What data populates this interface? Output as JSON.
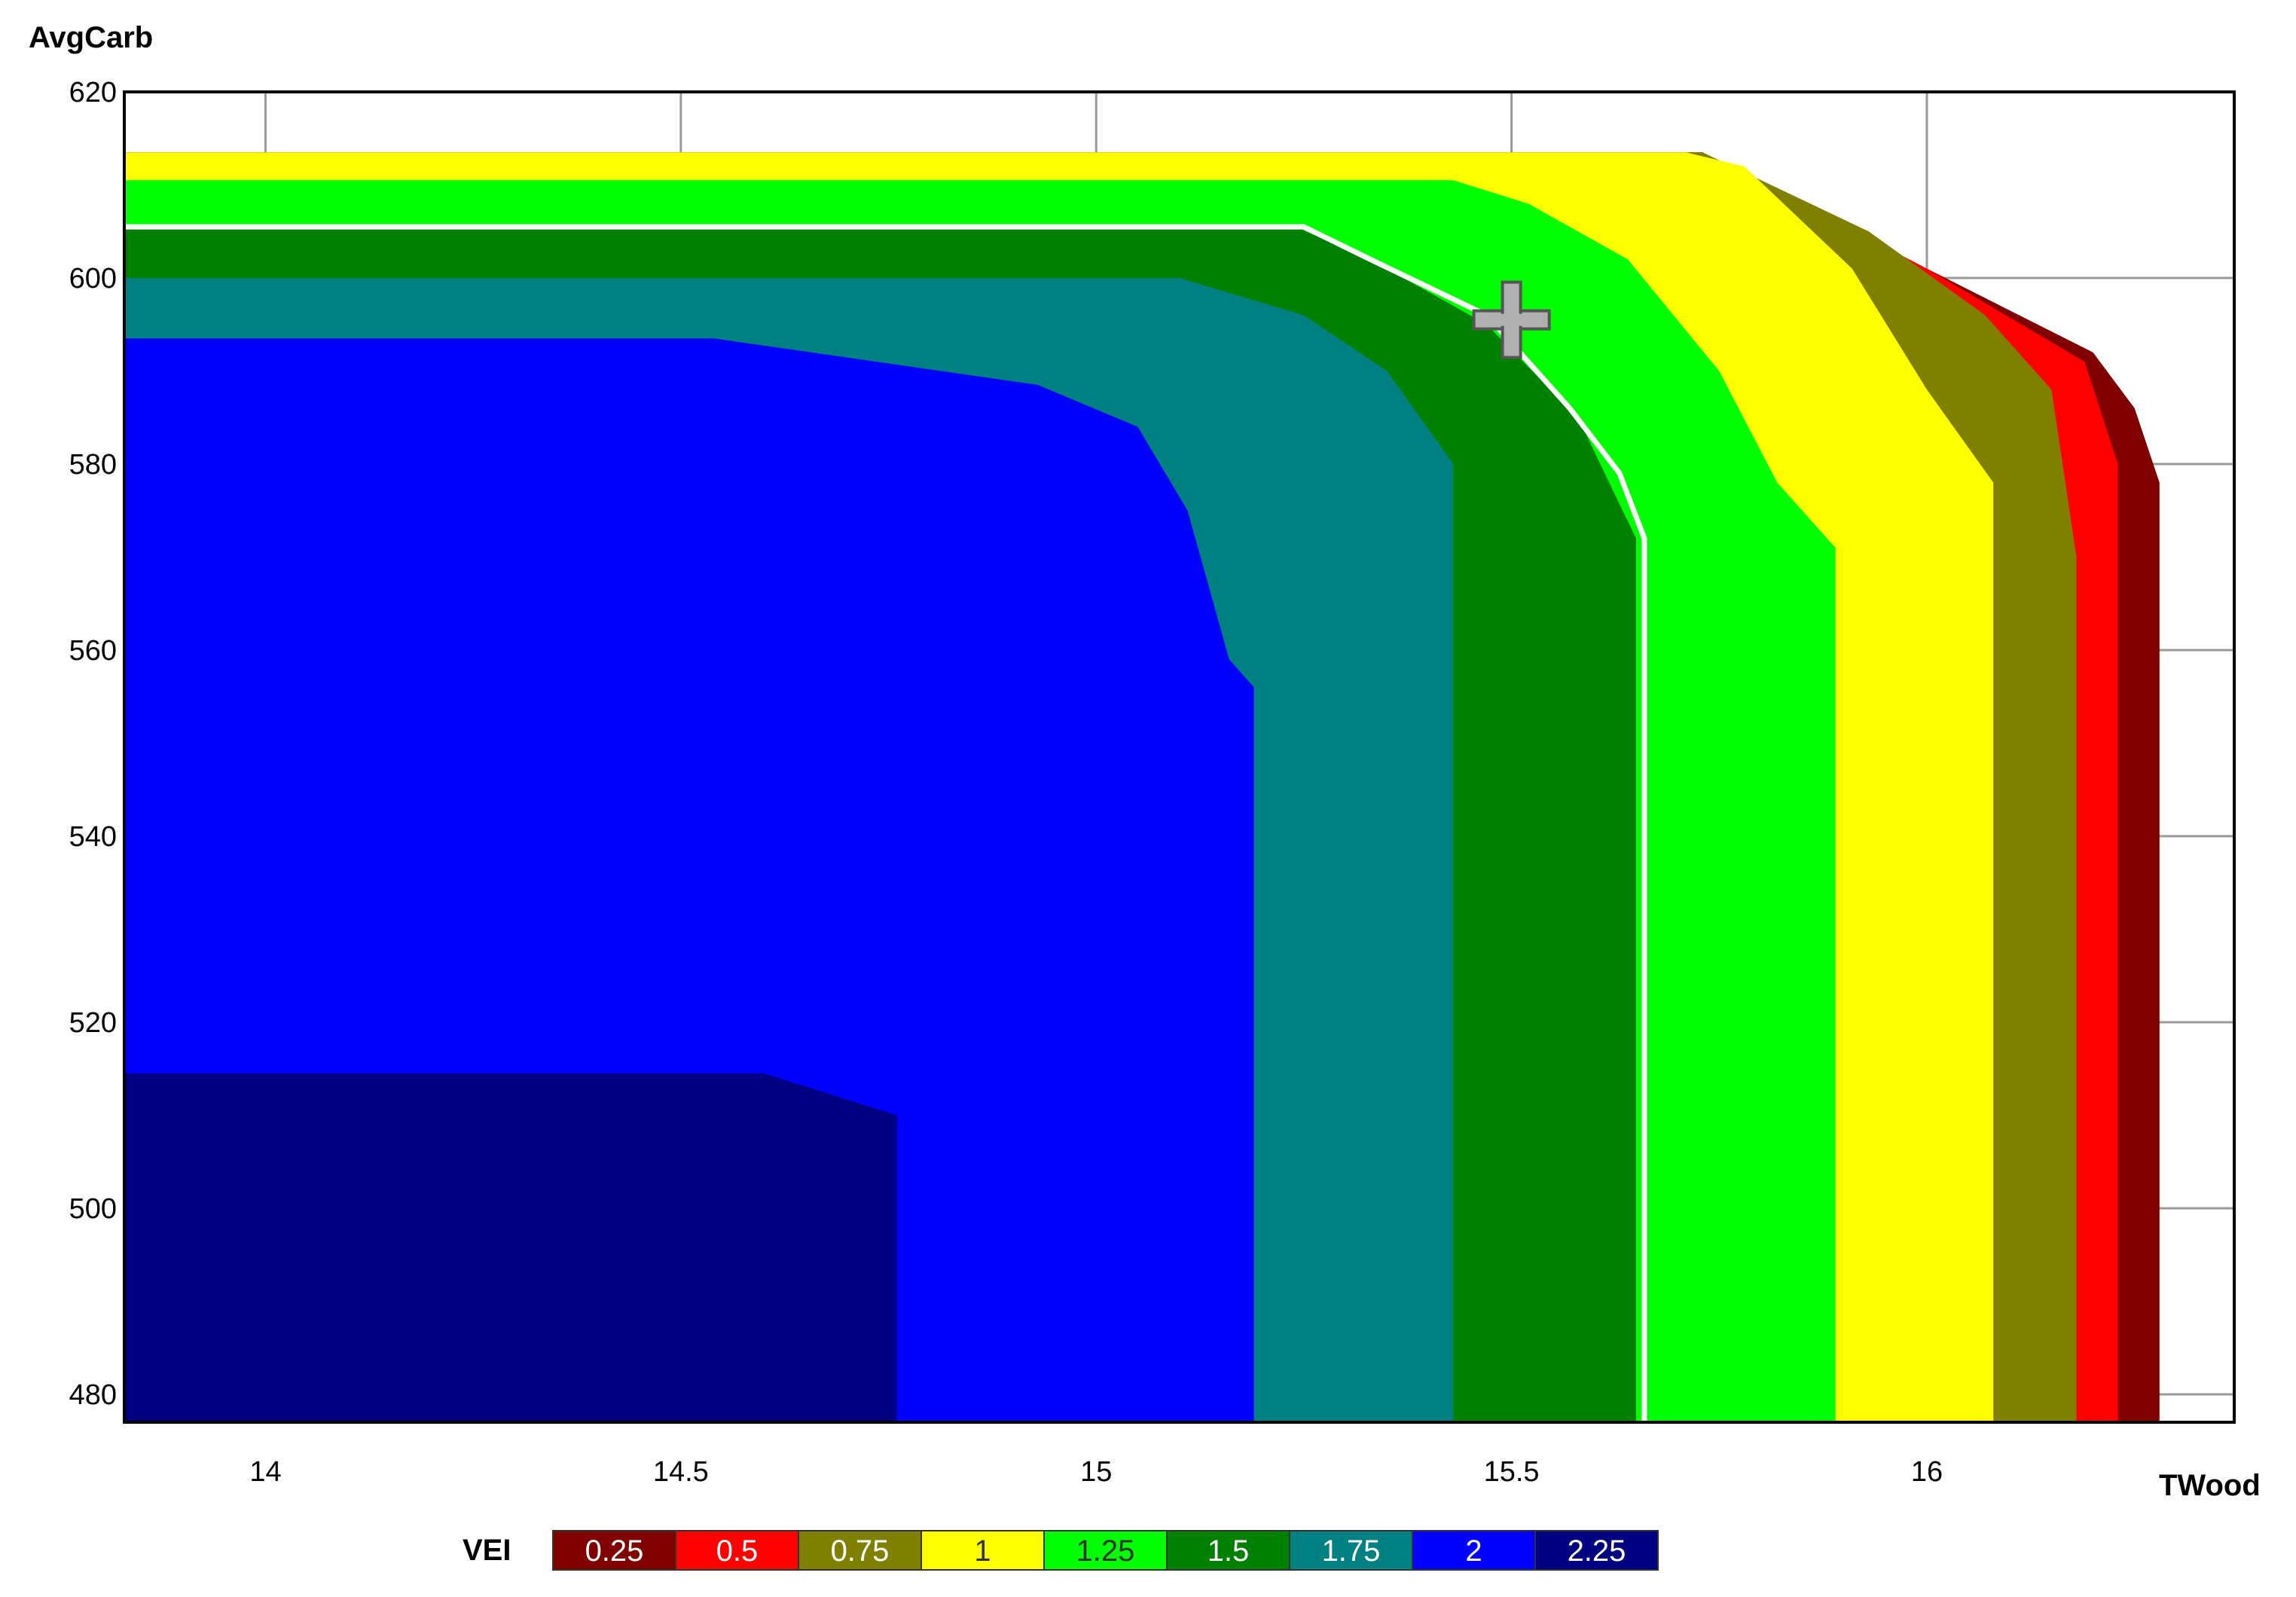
{
  "chart_data": {
    "type": "contour",
    "xlabel": "TWood",
    "ylabel": "AvgCarb",
    "xlim": [
      13.83,
      16.37
    ],
    "ylim": [
      477,
      620
    ],
    "x_ticks": [
      "14",
      "14.5",
      "15",
      "15.5",
      "16"
    ],
    "x_tick_values": [
      14,
      14.5,
      15,
      15.5,
      16
    ],
    "y_ticks": [
      "620",
      "600",
      "580",
      "560",
      "540",
      "520",
      "500",
      "480"
    ],
    "y_tick_values": [
      620,
      600,
      580,
      560,
      540,
      520,
      500,
      480
    ],
    "grid": true,
    "legend": {
      "title": "VEI",
      "position": "bottom",
      "levels": [
        {
          "label": "0.25",
          "value": 0.25,
          "color": "#800000"
        },
        {
          "label": "0.5",
          "value": 0.5,
          "color": "#ff0000"
        },
        {
          "label": "0.75",
          "value": 0.75,
          "color": "#808000"
        },
        {
          "label": "1",
          "value": 1,
          "color": "#ffff00"
        },
        {
          "label": "1.25",
          "value": 1.25,
          "color": "#00ff00"
        },
        {
          "label": "1.5",
          "value": 1.5,
          "color": "#008000"
        },
        {
          "label": "1.75",
          "value": 1.75,
          "color": "#008080"
        },
        {
          "label": "2",
          "value": 2,
          "color": "#0000ff"
        },
        {
          "label": "2.25",
          "value": 2.25,
          "color": "#000080"
        }
      ]
    },
    "regions": [
      {
        "level": "0.25",
        "points": [
          [
            13.83,
            613.5
          ],
          [
            15.73,
            613.5
          ],
          [
            16.0,
            601
          ],
          [
            16.2,
            592
          ],
          [
            16.25,
            586
          ],
          [
            16.28,
            578
          ],
          [
            16.28,
            477
          ],
          [
            13.83,
            477
          ]
        ]
      },
      {
        "level": "0.5",
        "points": [
          [
            13.83,
            613.5
          ],
          [
            15.73,
            613.5
          ],
          [
            16.0,
            601
          ],
          [
            16.19,
            591
          ],
          [
            16.23,
            580
          ],
          [
            16.23,
            477
          ],
          [
            13.83,
            477
          ]
        ]
      },
      {
        "level": "0.75",
        "points": [
          [
            13.83,
            613.5
          ],
          [
            15.73,
            613.5
          ],
          [
            15.93,
            605
          ],
          [
            16.07,
            596
          ],
          [
            16.15,
            588
          ],
          [
            16.18,
            570
          ],
          [
            16.18,
            477
          ],
          [
            13.83,
            477
          ]
        ]
      },
      {
        "level": "1",
        "points": [
          [
            13.83,
            613.5
          ],
          [
            15.71,
            613.5
          ],
          [
            15.78,
            612
          ],
          [
            15.91,
            601
          ],
          [
            16.0,
            588
          ],
          [
            16.08,
            578
          ],
          [
            16.08,
            477
          ],
          [
            13.83,
            477
          ]
        ]
      },
      {
        "level": "1.25",
        "points": [
          [
            13.83,
            610.5
          ],
          [
            15.43,
            610.5
          ],
          [
            15.52,
            608
          ],
          [
            15.64,
            602
          ],
          [
            15.75,
            590
          ],
          [
            15.82,
            578
          ],
          [
            15.89,
            571
          ],
          [
            15.89,
            477
          ],
          [
            13.83,
            477
          ]
        ]
      },
      {
        "level": "1.5",
        "points": [
          [
            13.83,
            605.5
          ],
          [
            15.24,
            605.5
          ],
          [
            15.33,
            602
          ],
          [
            15.47,
            595
          ],
          [
            15.58,
            585
          ],
          [
            15.65,
            572
          ],
          [
            15.65,
            477
          ],
          [
            13.83,
            477
          ]
        ]
      },
      {
        "level": "1.75",
        "points": [
          [
            13.83,
            600
          ],
          [
            15.1,
            600
          ],
          [
            15.25,
            596
          ],
          [
            15.35,
            590
          ],
          [
            15.43,
            580
          ],
          [
            15.43,
            477
          ],
          [
            13.83,
            477
          ]
        ]
      },
      {
        "level": "2",
        "points": [
          [
            13.83,
            593.5
          ],
          [
            14.54,
            593.5
          ],
          [
            14.93,
            588.5
          ],
          [
            15.05,
            584
          ],
          [
            15.11,
            575
          ],
          [
            15.16,
            559
          ],
          [
            15.19,
            556
          ],
          [
            15.19,
            477
          ],
          [
            13.83,
            477
          ]
        ]
      },
      {
        "level": "2.25",
        "points": [
          [
            13.83,
            514.5
          ],
          [
            14.6,
            514.5
          ],
          [
            14.76,
            510
          ],
          [
            14.76,
            477
          ],
          [
            13.83,
            477
          ]
        ]
      }
    ],
    "highlight_contour": {
      "color": "#ffffff",
      "points": [
        [
          13.83,
          605.5
        ],
        [
          15.25,
          605.5
        ],
        [
          15.33,
          602
        ],
        [
          15.47,
          596
        ],
        [
          15.57,
          586
        ],
        [
          15.63,
          579
        ],
        [
          15.66,
          572
        ],
        [
          15.66,
          477
        ]
      ]
    },
    "cursor_marker": {
      "x": 15.5,
      "y": 595.5
    }
  }
}
